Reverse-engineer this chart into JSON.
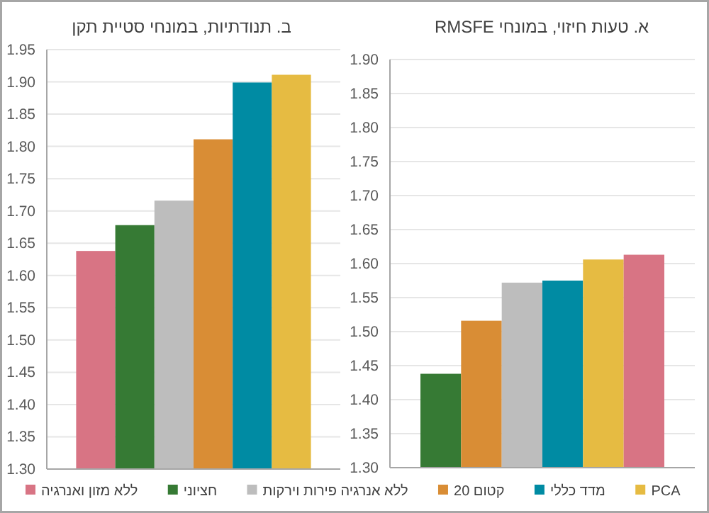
{
  "chart_data": [
    {
      "type": "bar",
      "title": "ב. תנודתיות, במונחי סטיית תקן",
      "categories": [
        null
      ],
      "ylim": [
        1.3,
        1.95
      ],
      "yticks": [
        {
          "value": 1.3,
          "label": "1.30"
        },
        {
          "value": 1.35,
          "label": "1.35"
        },
        {
          "value": 1.4,
          "label": "1.40"
        },
        {
          "value": 1.45,
          "label": "1.45"
        },
        {
          "value": 1.5,
          "label": "1.50"
        },
        {
          "value": 1.55,
          "label": "1.55"
        },
        {
          "value": 1.6,
          "label": "1.60"
        },
        {
          "value": 1.65,
          "label": "1.65"
        },
        {
          "value": 1.7,
          "label": "1.70"
        },
        {
          "value": 1.75,
          "label": "1.75"
        },
        {
          "value": 1.8,
          "label": "1.80"
        },
        {
          "value": 1.85,
          "label": "1.85"
        },
        {
          "value": 1.9,
          "label": "1.90"
        },
        {
          "value": 1.95,
          "label": "1.95"
        }
      ],
      "grid": "y",
      "legend": "bottom",
      "series": [
        {
          "name": "ללא מזון ואנרגיה",
          "color": "#d87484",
          "values": [
            1.638
          ]
        },
        {
          "name": "חציוני",
          "color": "#367a34",
          "values": [
            1.678
          ]
        },
        {
          "name": "ללא אנרגיה פירות וירקות",
          "color": "#bdbdbd",
          "values": [
            1.716
          ]
        },
        {
          "name": "קטום 20",
          "color": "#d98d35",
          "values": [
            1.811
          ]
        },
        {
          "name": "מדד כללי",
          "color": "#008ba3",
          "values": [
            1.899
          ]
        },
        {
          "name": "PCA",
          "color": "#e6bb42",
          "values": [
            1.911
          ]
        }
      ]
    },
    {
      "type": "bar",
      "title": "א. טעות חיזוי, במונחי RMSFE",
      "categories": [
        null
      ],
      "ylim": [
        1.3,
        1.9
      ],
      "yticks": [
        {
          "value": 1.3,
          "label": "1.30"
        },
        {
          "value": 1.35,
          "label": "1.35"
        },
        {
          "value": 1.4,
          "label": "1.40"
        },
        {
          "value": 1.45,
          "label": "1.45"
        },
        {
          "value": 1.5,
          "label": "1.50"
        },
        {
          "value": 1.55,
          "label": "1.55"
        },
        {
          "value": 1.6,
          "label": "1.60"
        },
        {
          "value": 1.65,
          "label": "1.65"
        },
        {
          "value": 1.7,
          "label": "1.70"
        },
        {
          "value": 1.75,
          "label": "1.75"
        },
        {
          "value": 1.8,
          "label": "1.80"
        },
        {
          "value": 1.85,
          "label": "1.85"
        },
        {
          "value": 1.9,
          "label": "1.90"
        }
      ],
      "grid": "y",
      "series": [
        {
          "color": "#367a34",
          "values": [
            1.438
          ]
        },
        {
          "color": "#d98d35",
          "values": [
            1.516
          ]
        },
        {
          "color": "#bdbdbd",
          "values": [
            1.572
          ]
        },
        {
          "color": "#008ba3",
          "values": [
            1.575
          ]
        },
        {
          "color": "#e6bb42",
          "values": [
            1.606
          ]
        },
        {
          "color": "#d87484",
          "values": [
            1.613
          ]
        }
      ]
    }
  ]
}
